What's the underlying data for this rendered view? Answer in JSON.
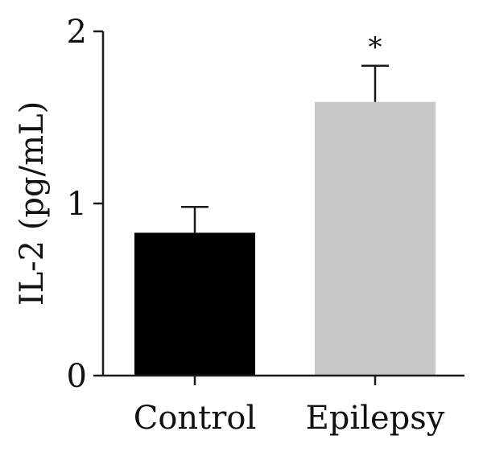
{
  "chart_data": {
    "type": "bar",
    "title": "",
    "xlabel": "",
    "ylabel": "IL-2 (pg/mL)",
    "ylim": [
      0,
      2
    ],
    "yticks": [
      0,
      1,
      2
    ],
    "grid": false,
    "categories": [
      "Control",
      "Epilepsy"
    ],
    "values": [
      0.83,
      1.59
    ],
    "errors": [
      0.15,
      0.21
    ],
    "colors": [
      "#000000",
      "#c8c7c8"
    ],
    "annotations": [
      {
        "category": "Epilepsy",
        "text": "*"
      }
    ]
  }
}
